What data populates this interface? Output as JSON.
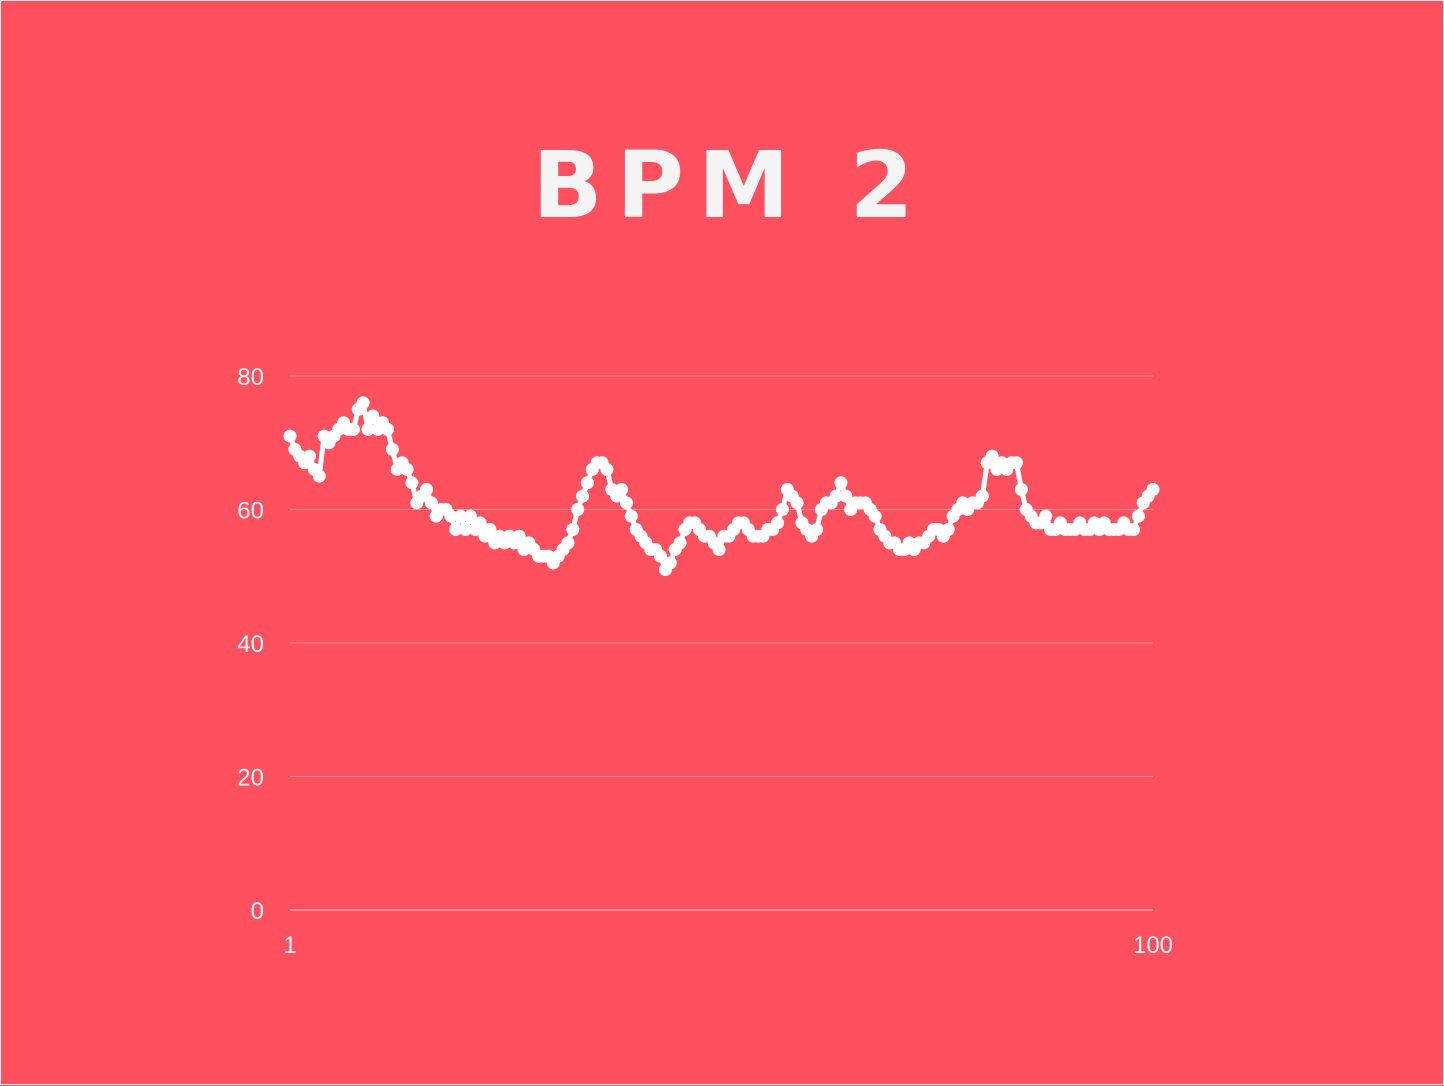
{
  "colors": {
    "background": "#ff505f",
    "series": "#ffffff",
    "text": "#f6f6f6",
    "grid": "#ff8a93"
  },
  "chart_data": {
    "type": "line",
    "title": "BPM 2",
    "xlabel": "",
    "ylabel": "",
    "xlim": [
      1,
      100
    ],
    "ylim": [
      0,
      80
    ],
    "x_ticks": [
      1,
      100
    ],
    "y_ticks": [
      0,
      20,
      40,
      60,
      80
    ],
    "grid": true,
    "markers": true,
    "series": [
      {
        "values": [
          71,
          69,
          68,
          67,
          68,
          66,
          65,
          71,
          70,
          71,
          72,
          73,
          72,
          72,
          75,
          76,
          72,
          74,
          72,
          73,
          72,
          69,
          66,
          67,
          66,
          64,
          61,
          62,
          63,
          61,
          59,
          60,
          60,
          59,
          57,
          59,
          57,
          59,
          57,
          58,
          56,
          57,
          55,
          56,
          55,
          56,
          55,
          56,
          54,
          55,
          54,
          53,
          53,
          53,
          52,
          53,
          54,
          55,
          57,
          60,
          62,
          64,
          66,
          67,
          67,
          66,
          63,
          62,
          63,
          61,
          59,
          57,
          56,
          55,
          54,
          54,
          53,
          51,
          52,
          54,
          55,
          57,
          58,
          58,
          57,
          56,
          56,
          55,
          54,
          56,
          56,
          57,
          58,
          58,
          57,
          56,
          56,
          56,
          57,
          57,
          58,
          60,
          63,
          62,
          61,
          58,
          57,
          56,
          57,
          60,
          61,
          61,
          62,
          64,
          62,
          60,
          61,
          61,
          61,
          60,
          59,
          57,
          56,
          55,
          55,
          54,
          54,
          55,
          54,
          55,
          55,
          56,
          57,
          57,
          56,
          57,
          59,
          60,
          61,
          60,
          61,
          61,
          62,
          67,
          68,
          66,
          67,
          66,
          67,
          67,
          63,
          60,
          59,
          58,
          58,
          59,
          57,
          57,
          58,
          57,
          57,
          57,
          58,
          57,
          57,
          58,
          57,
          58,
          57,
          57,
          57,
          58,
          57,
          57,
          59,
          61,
          62,
          63
        ]
      }
    ]
  }
}
